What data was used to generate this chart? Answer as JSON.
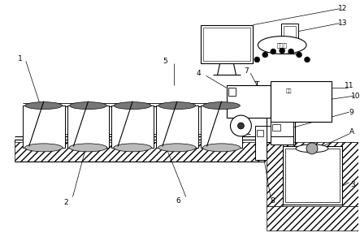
{
  "bg_color": "#ffffff",
  "figsize": [
    4.43,
    3.08
  ],
  "dpi": 100,
  "internet_label": "互联网",
  "valve_label": "电阀"
}
